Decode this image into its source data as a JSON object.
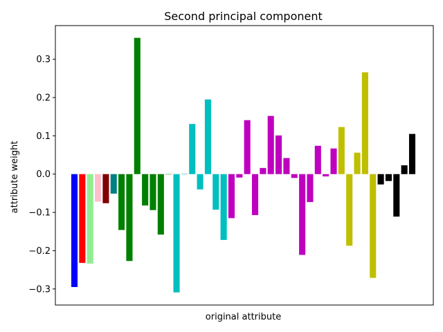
{
  "chart_data": {
    "type": "bar",
    "title": "Second principal component",
    "xlabel": "original attribute",
    "ylabel": "attribute weight",
    "ylim": [
      -0.342,
      0.388
    ],
    "yticks": [
      -0.3,
      -0.2,
      -0.1,
      0.0,
      0.1,
      0.2,
      0.3
    ],
    "ytick_labels": [
      "−0.3",
      "−0.2",
      "−0.1",
      "0.0",
      "0.1",
      "0.2",
      "0.3"
    ],
    "grid": false,
    "values": [
      -0.295,
      -0.232,
      -0.234,
      -0.072,
      -0.076,
      -0.051,
      -0.146,
      -0.227,
      0.356,
      -0.082,
      -0.094,
      -0.158,
      0.0,
      -0.309,
      0.001,
      0.131,
      -0.04,
      0.195,
      -0.093,
      -0.172,
      -0.115,
      -0.009,
      0.141,
      -0.107,
      0.016,
      0.152,
      0.101,
      0.042,
      -0.01,
      -0.211,
      -0.073,
      0.074,
      -0.006,
      0.067,
      0.123,
      -0.187,
      0.056,
      0.266,
      -0.271,
      -0.027,
      -0.018,
      -0.111,
      0.023,
      0.105
    ],
    "colors": [
      "#0000ff",
      "#ff0000",
      "#90ee90",
      "#ffc0cb",
      "#800000",
      "#008080",
      "#008000",
      "#008000",
      "#008000",
      "#008000",
      "#008000",
      "#008000",
      "#008000",
      "#00bfbf",
      "#00bfbf",
      "#00bfbf",
      "#00bfbf",
      "#00bfbf",
      "#00bfbf",
      "#00bfbf",
      "#bf00bf",
      "#bf00bf",
      "#bf00bf",
      "#bf00bf",
      "#bf00bf",
      "#bf00bf",
      "#bf00bf",
      "#bf00bf",
      "#bf00bf",
      "#bf00bf",
      "#bf00bf",
      "#bf00bf",
      "#bf00bf",
      "#bf00bf",
      "#bfbf00",
      "#bfbf00",
      "#bfbf00",
      "#bfbf00",
      "#bfbf00",
      "#000000",
      "#000000",
      "#000000",
      "#000000",
      "#000000"
    ]
  }
}
